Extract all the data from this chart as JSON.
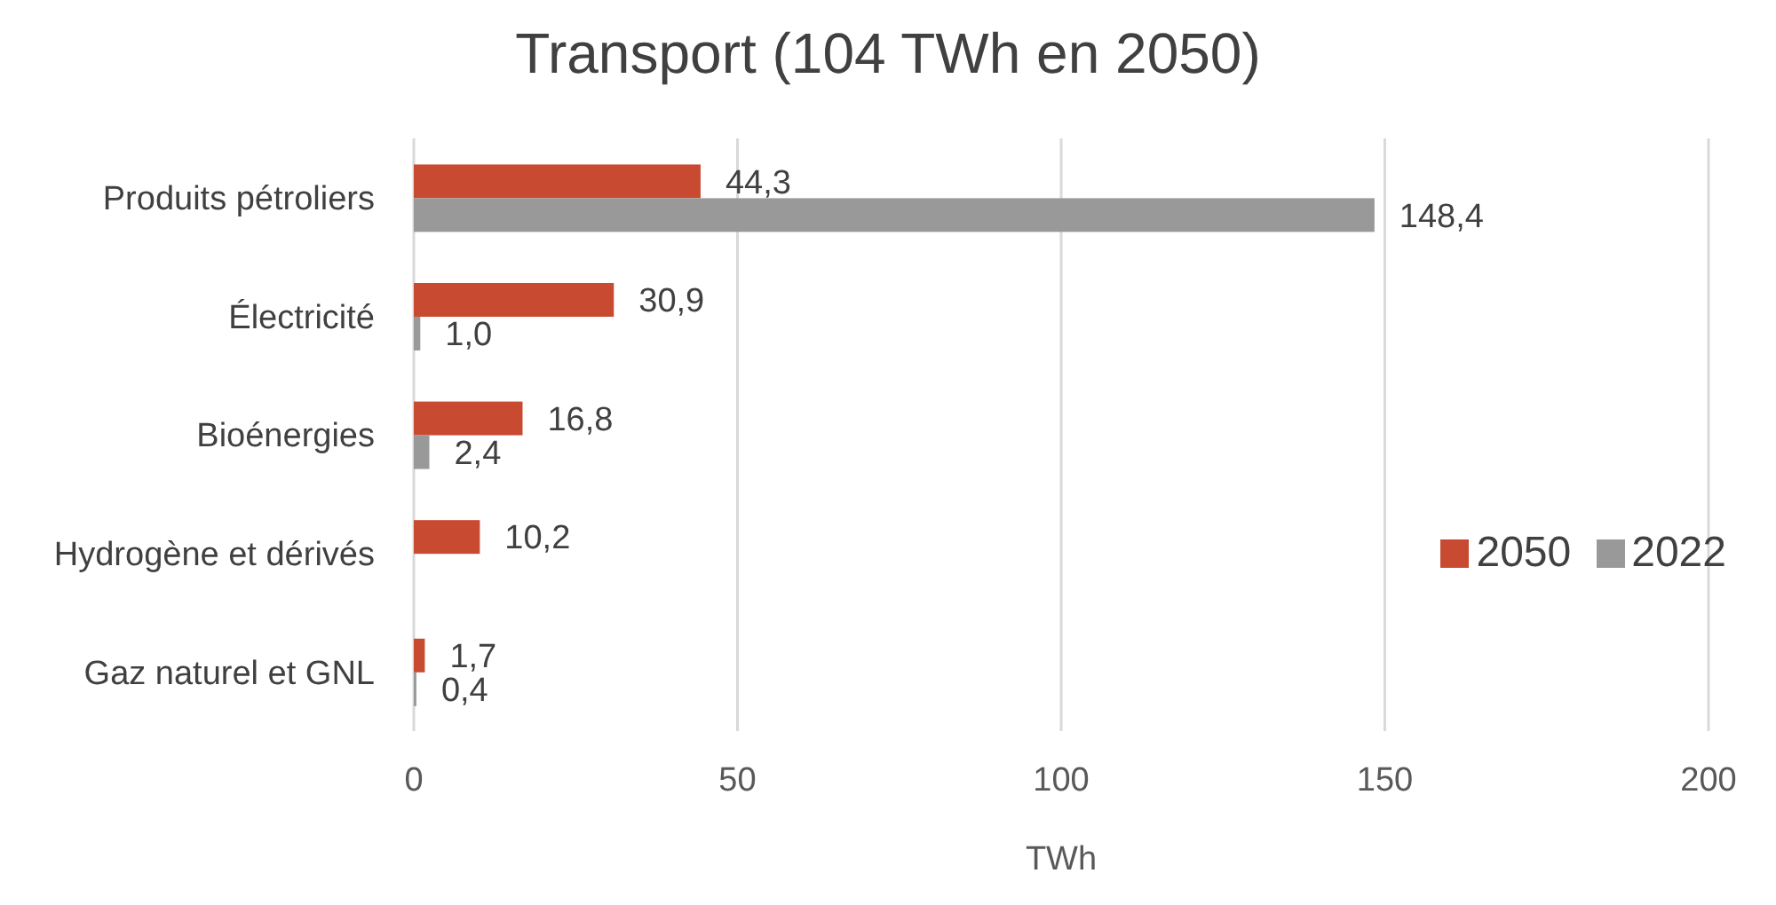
{
  "chart_data": {
    "type": "bar",
    "orientation": "horizontal",
    "title": "Transport (104 TWh en 2050)",
    "xlabel": "TWh",
    "categories": [
      "Produits pétroliers",
      "Électricité",
      "Bioénergies",
      "Hydrogène et dérivés",
      "Gaz naturel et GNL"
    ],
    "series": [
      {
        "name": "2050",
        "color": "#c84b31",
        "values": [
          44.3,
          30.9,
          16.8,
          10.2,
          1.7
        ],
        "value_labels": [
          "44,3",
          "30,9",
          "16,8",
          "10,2",
          "1,7"
        ]
      },
      {
        "name": "2022",
        "color": "#999999",
        "values": [
          148.4,
          1.0,
          2.4,
          null,
          0.4
        ],
        "value_labels": [
          "148,4",
          "1,0",
          "2,4",
          null,
          "0,4"
        ]
      }
    ],
    "xlim": [
      0,
      200
    ],
    "xticks": [
      0,
      50,
      100,
      150,
      200
    ],
    "grid": "x",
    "legend": "right"
  }
}
